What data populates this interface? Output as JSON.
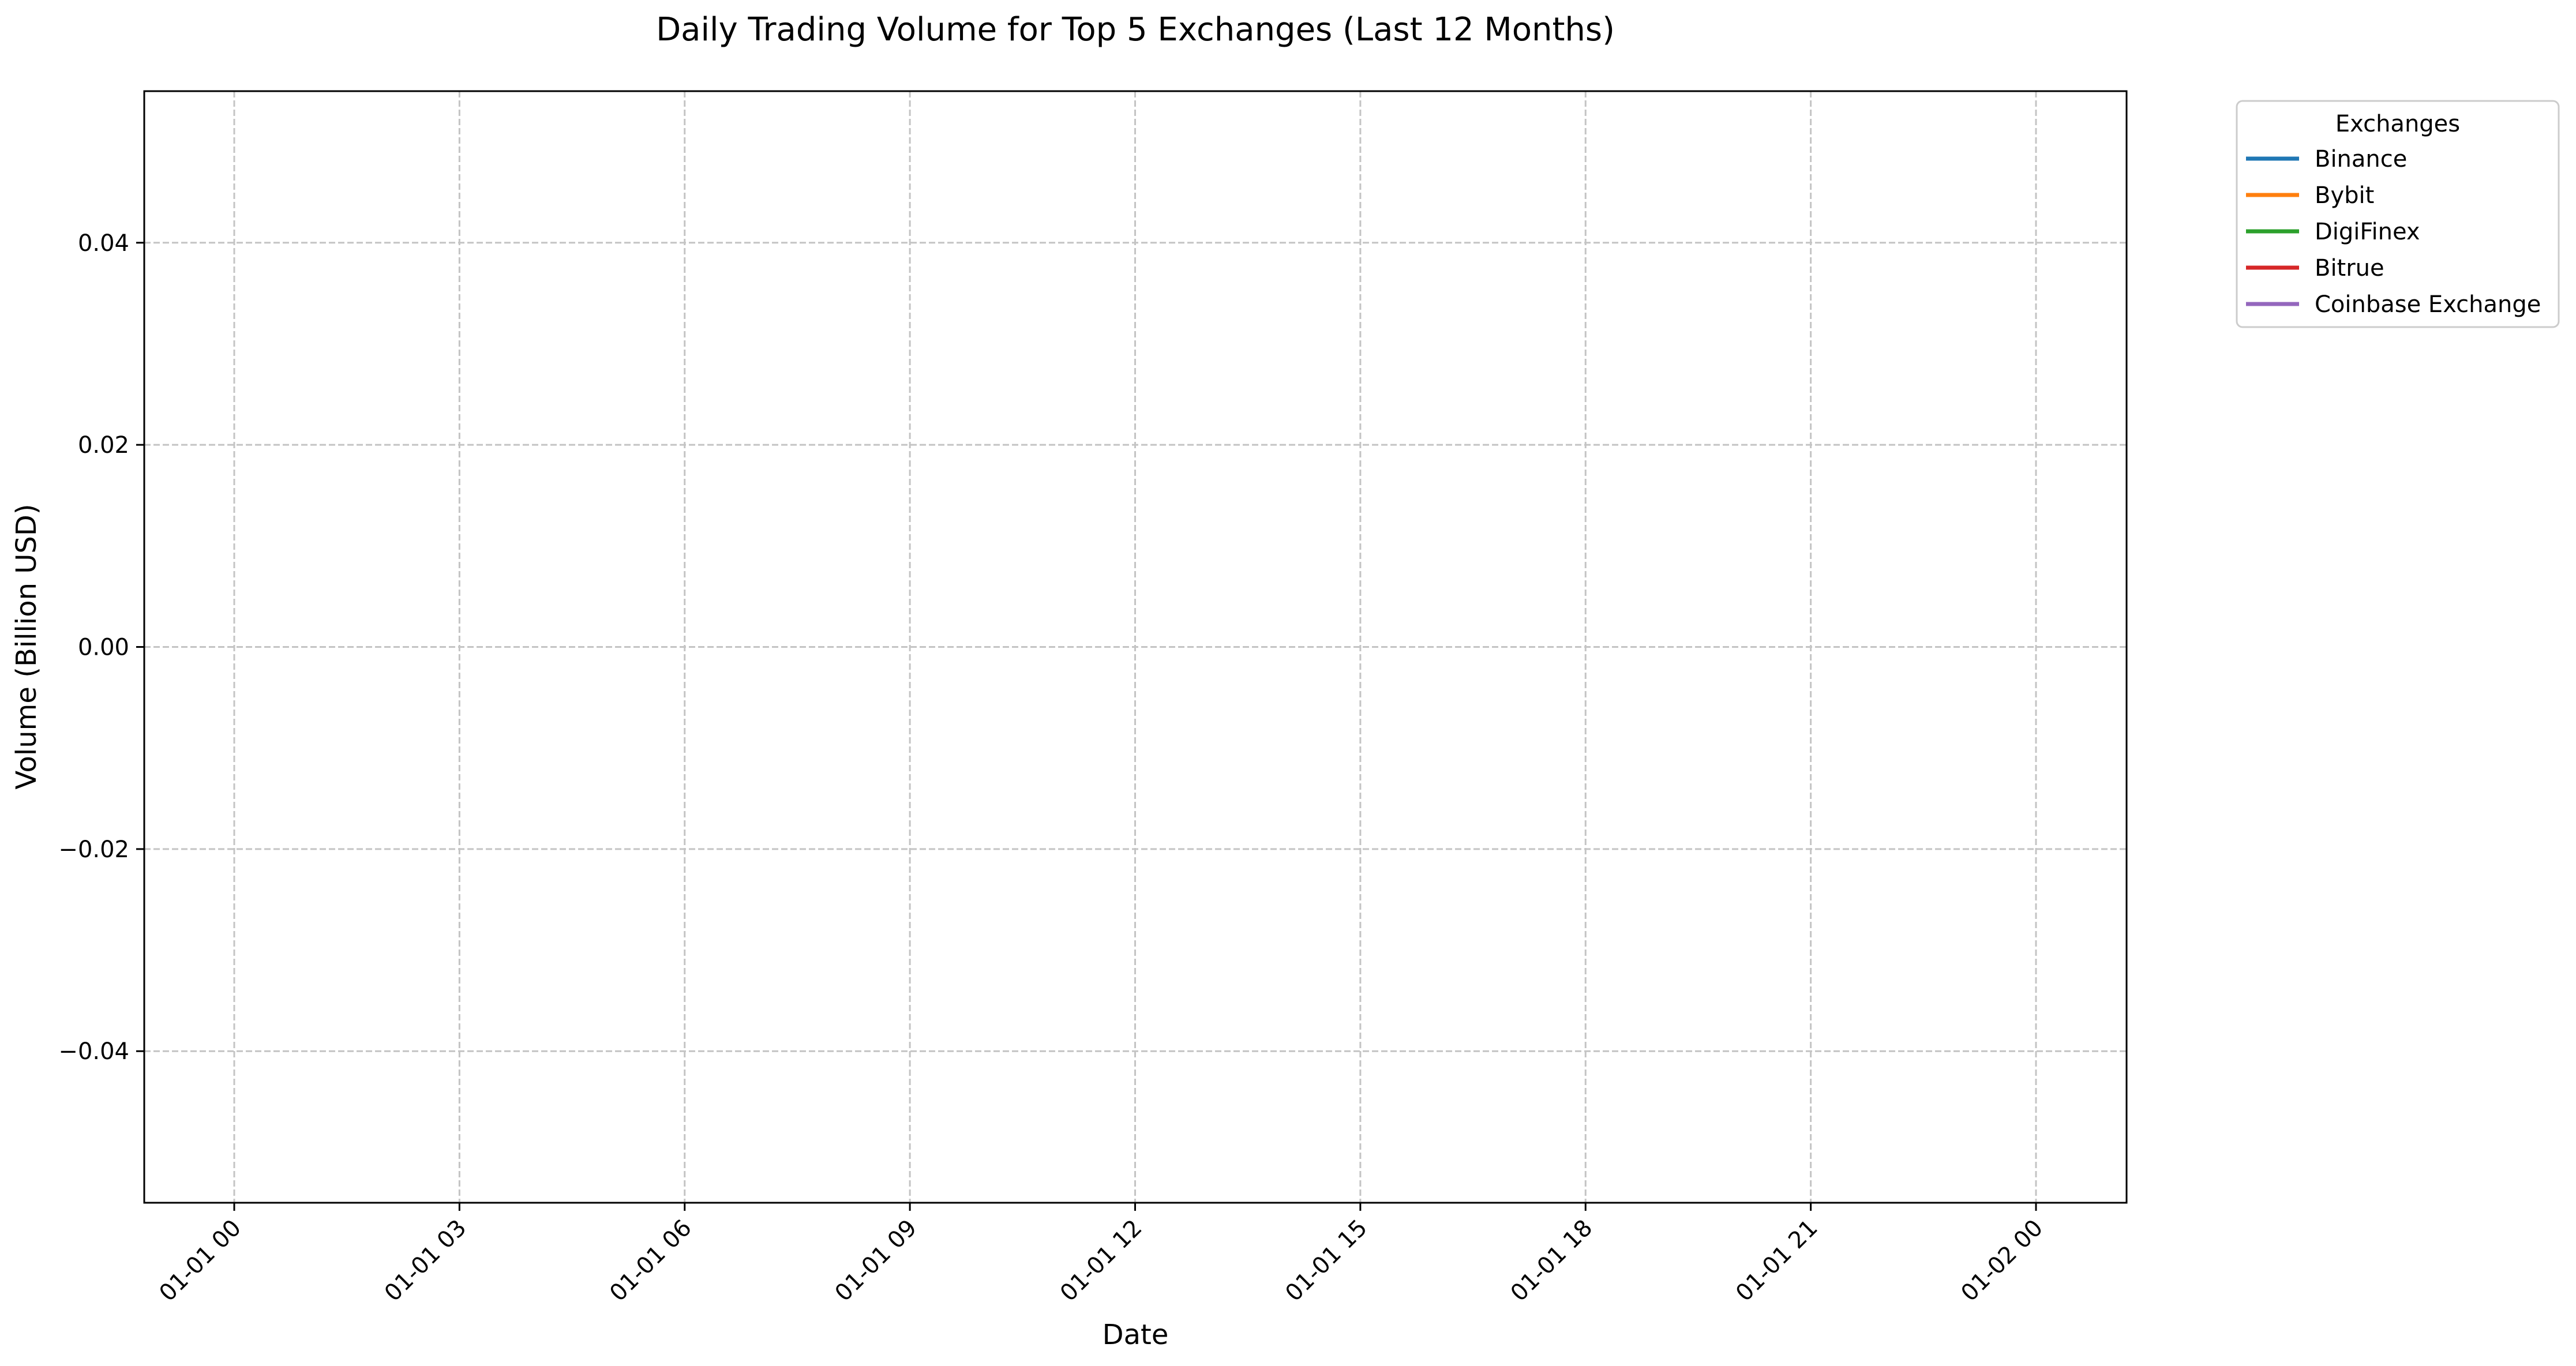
{
  "chart_data": {
    "type": "line",
    "title": "Daily Trading Volume for Top 5 Exchanges (Last 12 Months)",
    "xlabel": "Date",
    "ylabel": "Volume (Billion USD)",
    "x_ticks": [
      "01-01 00",
      "01-01 03",
      "01-01 06",
      "01-01 09",
      "01-01 12",
      "01-01 15",
      "01-01 18",
      "01-01 21",
      "01-02 00"
    ],
    "xlim": [
      "01-01 00",
      "01-02 00"
    ],
    "y_ticks": [
      0.04,
      0.02,
      0.0,
      -0.02,
      -0.04
    ],
    "y_tick_labels": [
      "0.04",
      "0.02",
      "0.00",
      "−0.02",
      "−0.04"
    ],
    "ylim": [
      -0.055,
      0.055
    ],
    "grid": true,
    "grid_style": "dashed",
    "legend": {
      "title": "Exchanges",
      "placement": "outside-top-right"
    },
    "series": [
      {
        "name": "Binance",
        "color": "#1f77b4",
        "x": [],
        "values": []
      },
      {
        "name": "Bybit",
        "color": "#ff7f0e",
        "x": [],
        "values": []
      },
      {
        "name": "DigiFinex",
        "color": "#2ca02c",
        "x": [],
        "values": []
      },
      {
        "name": "Bitrue",
        "color": "#d62728",
        "x": [],
        "values": []
      },
      {
        "name": "Coinbase Exchange",
        "color": "#9467bd",
        "x": [],
        "values": []
      }
    ]
  }
}
